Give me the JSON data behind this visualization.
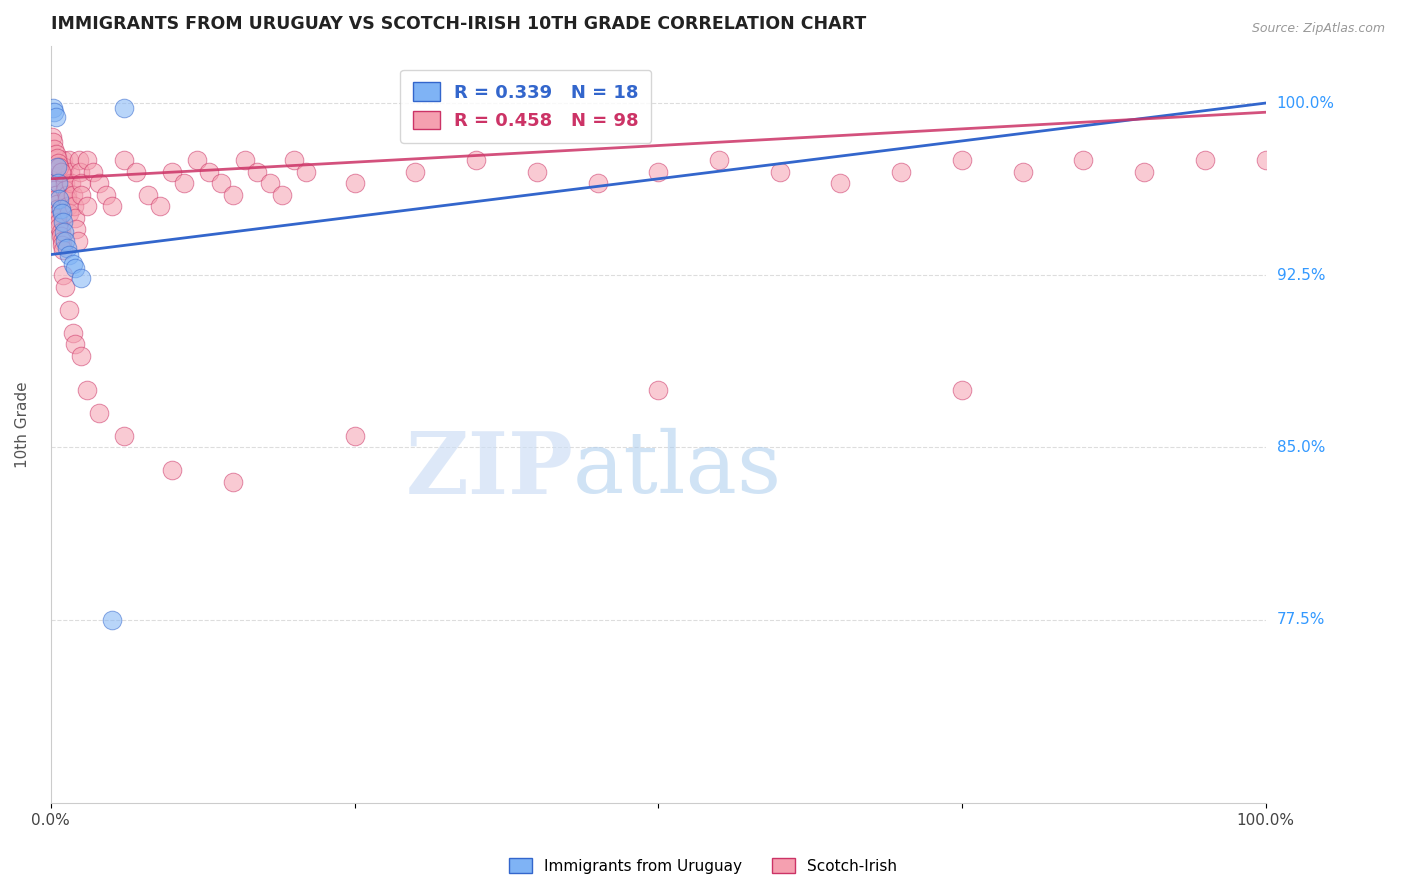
{
  "title": "IMMIGRANTS FROM URUGUAY VS SCOTCH-IRISH 10TH GRADE CORRELATION CHART",
  "source": "Source: ZipAtlas.com",
  "ylabel": "10th Grade",
  "ylabel_right_ticks": [
    "100.0%",
    "92.5%",
    "85.0%",
    "77.5%"
  ],
  "ylabel_right_vals": [
    1.0,
    0.925,
    0.85,
    0.775
  ],
  "xlim": [
    0.0,
    1.0
  ],
  "ylim": [
    0.695,
    1.025
  ],
  "blue_color": "#7fb3f5",
  "pink_color": "#f5a0b0",
  "blue_line_color": "#3366cc",
  "pink_line_color": "#cc3366",
  "watermark_zip": "ZIP",
  "watermark_atlas": "atlas",
  "uruguay_x": [
    0.002,
    0.003,
    0.004,
    0.005,
    0.006,
    0.007,
    0.008,
    0.009,
    0.01,
    0.011,
    0.012,
    0.013,
    0.015,
    0.018,
    0.02,
    0.025,
    0.05,
    0.06
  ],
  "uruguay_y": [
    0.998,
    0.996,
    0.994,
    0.972,
    0.965,
    0.958,
    0.954,
    0.952,
    0.948,
    0.944,
    0.94,
    0.937,
    0.934,
    0.93,
    0.928,
    0.924,
    0.775,
    0.998
  ],
  "scotch_x": [
    0.001,
    0.002,
    0.003,
    0.003,
    0.004,
    0.004,
    0.005,
    0.005,
    0.006,
    0.006,
    0.007,
    0.007,
    0.008,
    0.008,
    0.009,
    0.009,
    0.01,
    0.01,
    0.011,
    0.011,
    0.012,
    0.012,
    0.013,
    0.013,
    0.014,
    0.015,
    0.015,
    0.016,
    0.017,
    0.018,
    0.019,
    0.02,
    0.021,
    0.022,
    0.023,
    0.024,
    0.025,
    0.025,
    0.03,
    0.03,
    0.035,
    0.04,
    0.045,
    0.05,
    0.06,
    0.07,
    0.08,
    0.09,
    0.1,
    0.11,
    0.12,
    0.13,
    0.14,
    0.15,
    0.16,
    0.17,
    0.18,
    0.19,
    0.2,
    0.21,
    0.25,
    0.3,
    0.35,
    0.4,
    0.45,
    0.5,
    0.55,
    0.6,
    0.65,
    0.7,
    0.75,
    0.8,
    0.85,
    0.9,
    0.95,
    1.0,
    0.001,
    0.002,
    0.003,
    0.004,
    0.005,
    0.006,
    0.007,
    0.008,
    0.01,
    0.012,
    0.015,
    0.018,
    0.02,
    0.025,
    0.03,
    0.04,
    0.06,
    0.1,
    0.15,
    0.25,
    0.5,
    0.75
  ],
  "scotch_y": [
    0.972,
    0.968,
    0.965,
    0.962,
    0.96,
    0.958,
    0.956,
    0.954,
    0.952,
    0.95,
    0.948,
    0.946,
    0.944,
    0.942,
    0.94,
    0.938,
    0.936,
    0.975,
    0.972,
    0.968,
    0.965,
    0.962,
    0.96,
    0.958,
    0.955,
    0.952,
    0.975,
    0.97,
    0.965,
    0.96,
    0.955,
    0.95,
    0.945,
    0.94,
    0.975,
    0.97,
    0.965,
    0.96,
    0.955,
    0.975,
    0.97,
    0.965,
    0.96,
    0.955,
    0.975,
    0.97,
    0.96,
    0.955,
    0.97,
    0.965,
    0.975,
    0.97,
    0.965,
    0.96,
    0.975,
    0.97,
    0.965,
    0.96,
    0.975,
    0.97,
    0.965,
    0.97,
    0.975,
    0.97,
    0.965,
    0.97,
    0.975,
    0.97,
    0.965,
    0.97,
    0.975,
    0.97,
    0.975,
    0.97,
    0.975,
    0.975,
    0.985,
    0.983,
    0.98,
    0.978,
    0.976,
    0.974,
    0.972,
    0.97,
    0.925,
    0.92,
    0.91,
    0.9,
    0.895,
    0.89,
    0.875,
    0.865,
    0.855,
    0.84,
    0.835,
    0.855,
    0.875,
    0.875
  ]
}
